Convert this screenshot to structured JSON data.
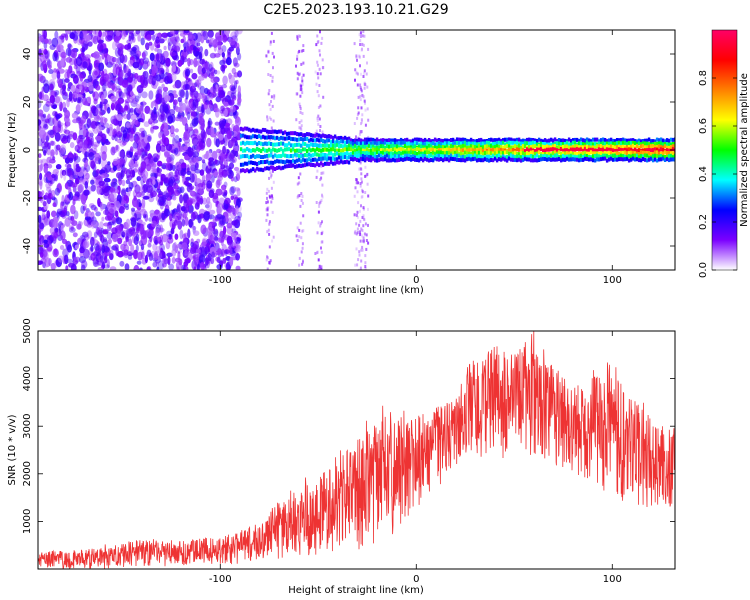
{
  "figure_title": "C2E5.2023.193.10.21.G29",
  "chart_data": [
    {
      "type": "heatmap",
      "title": "C2E5.2023.193.10.21.G29",
      "xlabel": "Height of straight line (km)",
      "ylabel": "Frequency (Hz)",
      "xlim": [
        -193,
        132
      ],
      "ylim": [
        -50,
        50
      ],
      "xticks": [
        -100,
        0,
        100
      ],
      "yticks": [
        -40,
        -20,
        0,
        20,
        40
      ],
      "description_series": [
        {
          "name": "broadband noise region",
          "x_range": [
            -193,
            -90
          ],
          "freq_range": [
            -50,
            50
          ]
        },
        {
          "name": "signal band",
          "x_range": [
            -90,
            132
          ],
          "center_freq": 0,
          "half_width_hz": 4
        }
      ],
      "colorbar": {
        "label": "Normalized spectral amplitude",
        "range": [
          0.0,
          1.0
        ],
        "ticks": [
          0.0,
          0.2,
          0.4,
          0.6,
          0.8
        ],
        "colormap": [
          "#ffffff",
          "#7b00ff",
          "#0000ff",
          "#00ffff",
          "#00ff00",
          "#ffff00",
          "#ff8000",
          "#ff0000",
          "#ff0066"
        ]
      }
    },
    {
      "type": "line",
      "xlabel": "Height of straight line (km)",
      "ylabel": "SNR (10 * v/v)",
      "xlim": [
        -193,
        132
      ],
      "ylim": [
        0,
        5000
      ],
      "xticks": [
        -100,
        0,
        100
      ],
      "yticks": [
        1000,
        2000,
        3000,
        4000,
        5000
      ],
      "series": [
        {
          "name": "SNR",
          "color": "#ee3333",
          "x": [
            -193,
            -180,
            -160,
            -140,
            -120,
            -100,
            -90,
            -80,
            -70,
            -60,
            -50,
            -40,
            -30,
            -20,
            -10,
            0,
            10,
            20,
            25,
            30,
            40,
            50,
            60,
            70,
            80,
            90,
            100,
            110,
            120,
            132
          ],
          "low": [
            0,
            0,
            0,
            50,
            50,
            100,
            100,
            150,
            200,
            250,
            300,
            350,
            400,
            500,
            700,
            1200,
            1600,
            1900,
            2300,
            2400,
            2200,
            2400,
            2300,
            2200,
            2000,
            1800,
            1500,
            1300,
            1300,
            1300
          ],
          "high": [
            350,
            400,
            450,
            650,
            600,
            700,
            800,
            1000,
            1450,
            1800,
            2000,
            2500,
            2800,
            3100,
            3400,
            3200,
            3400,
            3600,
            4300,
            4500,
            4700,
            4500,
            5000,
            4300,
            3800,
            4200,
            4400,
            3600,
            3200,
            3000
          ]
        }
      ]
    }
  ]
}
